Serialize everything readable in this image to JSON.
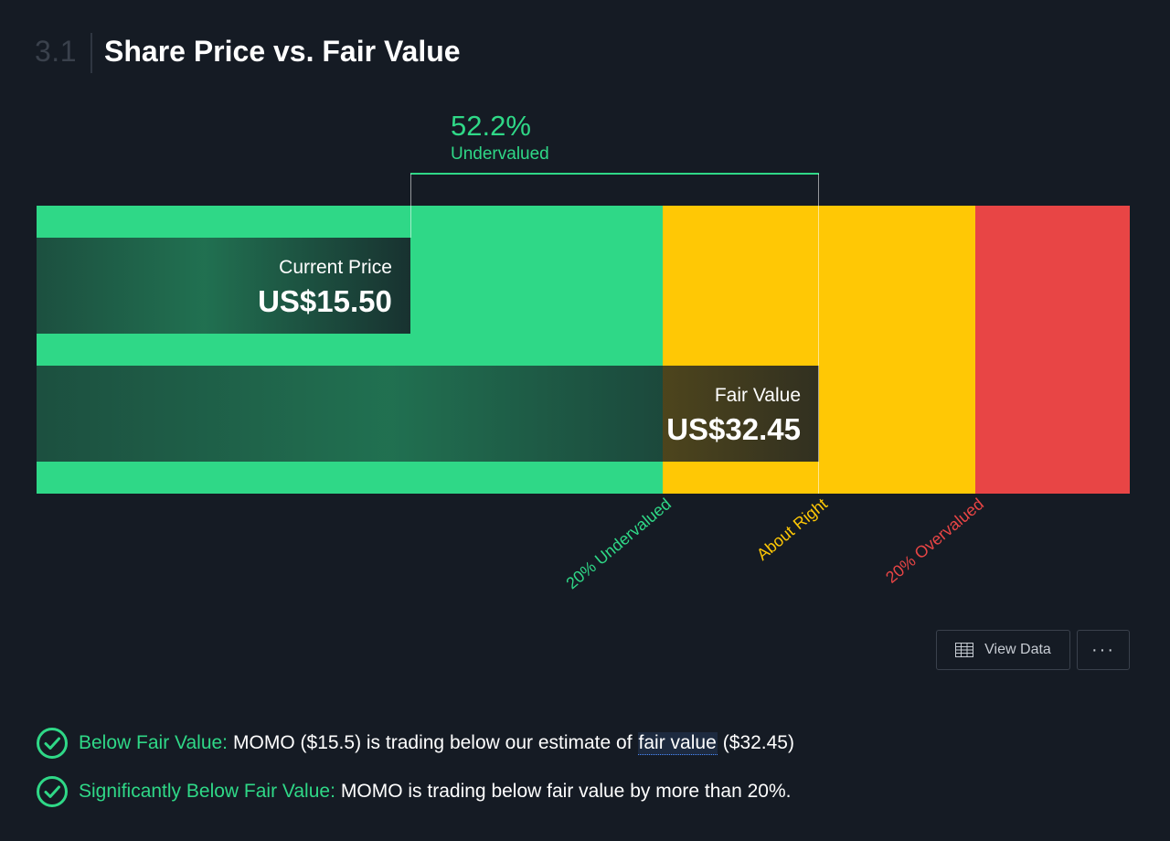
{
  "header": {
    "section_number": "3.1",
    "title": "Share Price vs. Fair Value"
  },
  "chart_data": {
    "type": "bar",
    "categories": [
      "Current Price",
      "Fair Value"
    ],
    "values": [
      15.5,
      32.45
    ],
    "value_labels": [
      "US$15.50",
      "US$32.45"
    ],
    "difference": {
      "value": "52.2%",
      "label": "Undervalued"
    },
    "zones": [
      {
        "label": "20% Undervalued",
        "color": "#2fd887"
      },
      {
        "label": "About Right",
        "color": "#ffc805"
      },
      {
        "label": "20% Overvalued",
        "color": "#e84545"
      }
    ]
  },
  "actions": {
    "view_data": "View Data",
    "more": "···"
  },
  "checks": [
    {
      "label": "Below Fair Value:",
      "text_before": "MOMO ($15.5) is trading below our estimate of",
      "link": "fair value",
      "text_after": "($32.45)"
    },
    {
      "label": "Significantly Below Fair Value:",
      "text": "MOMO is trading below fair value by more than 20%."
    }
  ],
  "colors": {
    "background": "#151b24",
    "undervalued": "#2fd887",
    "about_right": "#ffc805",
    "overvalued": "#e84545",
    "muted": "#3a414c"
  }
}
